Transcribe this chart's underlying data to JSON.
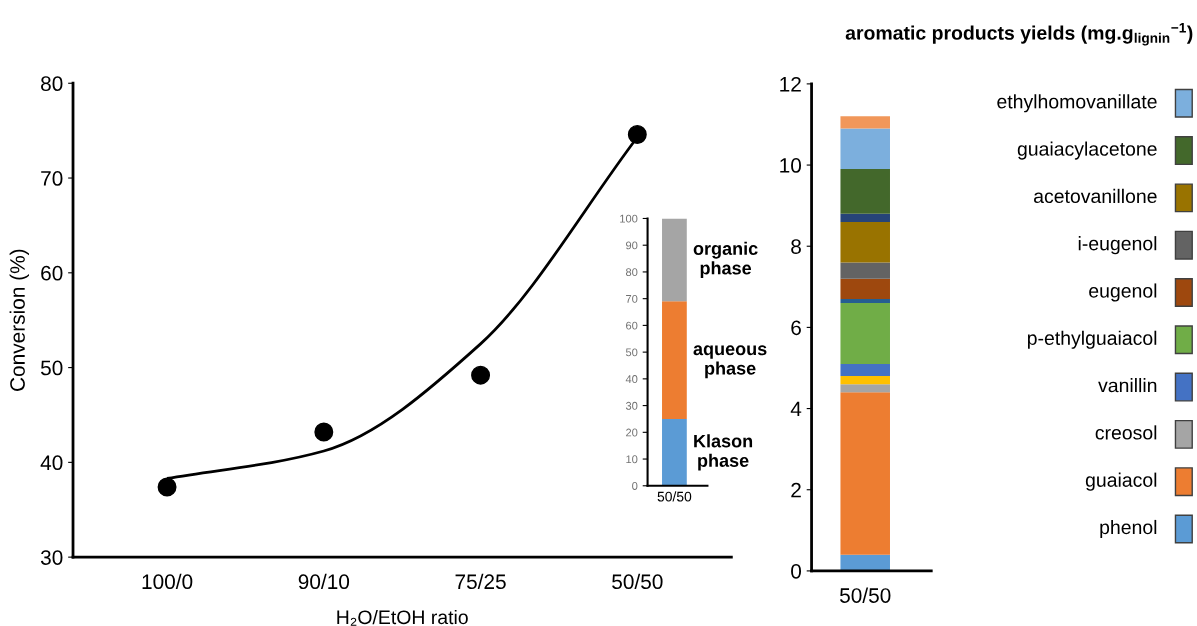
{
  "chart_data": [
    {
      "type": "scatter",
      "xlabel": "H₂O/EtOH ratio",
      "ylabel": "Conversion (%)",
      "categories": [
        "100/0",
        "90/10",
        "75/25",
        "50/50"
      ],
      "ylim": [
        30,
        80
      ],
      "yticks": [
        30,
        40,
        50,
        60,
        70,
        80
      ],
      "grid": false,
      "legend": false,
      "series": [
        {
          "type": "scatter",
          "color": "#000000",
          "marker": "circle",
          "values": [
            37.4,
            43.2,
            49.2,
            74.6
          ]
        },
        {
          "type": "line",
          "color": "#000000",
          "marker": "none",
          "values": [
            38.3,
            41.2,
            52.5,
            74.3
          ]
        }
      ]
    },
    {
      "type": "bar",
      "stacked": true,
      "categories": [
        "50/50"
      ],
      "ylim": [
        0,
        100
      ],
      "yticks": [
        0,
        10,
        20,
        30,
        40,
        50,
        60,
        70,
        80,
        90,
        100
      ],
      "grid": false,
      "legend": false,
      "series": [
        {
          "name": "Klason\nphase",
          "color": "#5b9bd5",
          "values": [
            25
          ]
        },
        {
          "name": "aqueous\nphase",
          "color": "#ed7d31",
          "values": [
            44
          ]
        },
        {
          "name": "organic\nphase",
          "color": "#a5a5a5",
          "values": [
            31
          ]
        }
      ]
    },
    {
      "type": "bar",
      "stacked": true,
      "legend_title": "aromatic products yields (mg.g$_{lignin}$$^{−1}$)",
      "categories": [
        "50/50"
      ],
      "ylim": [
        0,
        12
      ],
      "yticks": [
        0,
        2,
        4,
        6,
        8,
        10,
        12
      ],
      "grid": false,
      "legend": "right",
      "series": [
        {
          "name": "phenol",
          "color": "#5b9bd5",
          "values": [
            0.4
          ]
        },
        {
          "name": "guaiacol",
          "color": "#ed7d31",
          "values": [
            4.0
          ]
        },
        {
          "name": "creosol",
          "color": "#a5a5a5",
          "values": [
            0.2
          ]
        },
        {
          "color": "#ffc000",
          "values": [
            0.2
          ]
        },
        {
          "name": "vanillin",
          "color": "#4472c4",
          "values": [
            0.3
          ]
        },
        {
          "name": "p-ethylguaiacol",
          "color": "#70ad47",
          "values": [
            1.5
          ]
        },
        {
          "color": "#255e91",
          "values": [
            0.1
          ]
        },
        {
          "name": "eugenol",
          "color": "#9e480e",
          "values": [
            0.5
          ]
        },
        {
          "name": "i-eugenol",
          "color": "#636363",
          "values": [
            0.4
          ]
        },
        {
          "name": "acetovanillone",
          "color": "#997300",
          "values": [
            1.0
          ]
        },
        {
          "color": "#264478",
          "values": [
            0.2
          ]
        },
        {
          "name": "guaiacylacetone",
          "color": "#43682b",
          "values": [
            1.1
          ]
        },
        {
          "name": "ethylhomovanillate",
          "color": "#7cafdd",
          "values": [
            1.0
          ]
        },
        {
          "color": "#f1975a",
          "values": [
            0.3
          ]
        }
      ]
    }
  ]
}
